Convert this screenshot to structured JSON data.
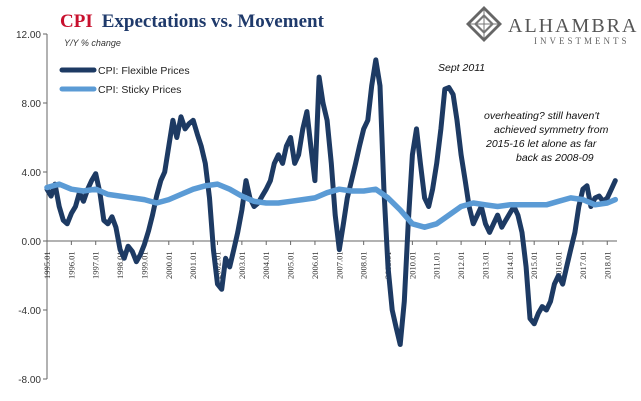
{
  "title": {
    "part1": "CPI",
    "part2": "Expectations vs. Movement"
  },
  "brand": {
    "name": "ALHAMBRA",
    "sub": "INVESTMENTS"
  },
  "chart_data": {
    "type": "line",
    "ylabel": "Y/Y % change",
    "ylim": [
      -8,
      12
    ],
    "yticks": [
      "12.00",
      "8.00",
      "4.00",
      "0.00",
      "-4.00",
      "-8.00"
    ],
    "ytick_values": [
      12,
      8,
      4,
      0,
      -4,
      -8
    ],
    "xlim": [
      1995.0,
      2018.4
    ],
    "xticks": [
      "1995.01",
      "1996.01",
      "1997.01",
      "1998.01",
      "1999.01",
      "2000.01",
      "2001.01",
      "2002.01",
      "2003.01",
      "2004.01",
      "2005.01",
      "2006.01",
      "2007.01",
      "2008.01",
      "2009.01",
      "2010.01",
      "2011.01",
      "2012.01",
      "2013.01",
      "2014.01",
      "2015.01",
      "2016.01",
      "2017.01",
      "2018.01"
    ],
    "xtick_values": [
      1995,
      1996,
      1997,
      1998,
      1999,
      2000,
      2001,
      2002,
      2003,
      2004,
      2005,
      2006,
      2007,
      2008,
      2009,
      2010,
      2011,
      2012,
      2013,
      2014,
      2015,
      2016,
      2017,
      2018
    ],
    "grid": false,
    "legend_position": "top-left",
    "series": [
      {
        "name": "CPI: Flexible Prices",
        "color": "#1d3a63",
        "points": [
          [
            1995.0,
            3.0
          ],
          [
            1995.17,
            2.6
          ],
          [
            1995.33,
            3.3
          ],
          [
            1995.5,
            2.0
          ],
          [
            1995.67,
            1.2
          ],
          [
            1995.83,
            1.0
          ],
          [
            1996.0,
            1.6
          ],
          [
            1996.17,
            2.0
          ],
          [
            1996.33,
            2.8
          ],
          [
            1996.5,
            2.3
          ],
          [
            1996.67,
            3.0
          ],
          [
            1996.83,
            3.5
          ],
          [
            1997.0,
            3.9
          ],
          [
            1997.17,
            2.8
          ],
          [
            1997.33,
            1.2
          ],
          [
            1997.5,
            1.0
          ],
          [
            1997.67,
            1.4
          ],
          [
            1997.83,
            0.8
          ],
          [
            1998.0,
            -0.5
          ],
          [
            1998.17,
            -1.0
          ],
          [
            1998.33,
            -0.3
          ],
          [
            1998.5,
            -0.6
          ],
          [
            1998.67,
            -1.2
          ],
          [
            1998.83,
            -0.8
          ],
          [
            1999.0,
            -0.2
          ],
          [
            1999.17,
            0.6
          ],
          [
            1999.33,
            1.5
          ],
          [
            1999.5,
            2.6
          ],
          [
            1999.67,
            3.5
          ],
          [
            1999.83,
            4.0
          ],
          [
            2000.0,
            5.5
          ],
          [
            2000.17,
            7.0
          ],
          [
            2000.33,
            6.0
          ],
          [
            2000.5,
            7.2
          ],
          [
            2000.67,
            6.5
          ],
          [
            2000.83,
            6.8
          ],
          [
            2001.0,
            7.0
          ],
          [
            2001.17,
            6.2
          ],
          [
            2001.33,
            5.5
          ],
          [
            2001.5,
            4.5
          ],
          [
            2001.67,
            2.5
          ],
          [
            2001.83,
            -0.5
          ],
          [
            2002.0,
            -2.5
          ],
          [
            2002.17,
            -2.8
          ],
          [
            2002.33,
            -1.0
          ],
          [
            2002.5,
            -1.5
          ],
          [
            2002.67,
            -0.5
          ],
          [
            2002.83,
            0.5
          ],
          [
            2003.0,
            1.8
          ],
          [
            2003.17,
            3.5
          ],
          [
            2003.33,
            2.5
          ],
          [
            2003.5,
            2.0
          ],
          [
            2003.67,
            2.2
          ],
          [
            2003.83,
            2.6
          ],
          [
            2004.0,
            3.0
          ],
          [
            2004.17,
            3.5
          ],
          [
            2004.33,
            4.5
          ],
          [
            2004.5,
            5.0
          ],
          [
            2004.67,
            4.5
          ],
          [
            2004.83,
            5.5
          ],
          [
            2005.0,
            6.0
          ],
          [
            2005.17,
            4.5
          ],
          [
            2005.33,
            5.0
          ],
          [
            2005.5,
            6.5
          ],
          [
            2005.67,
            7.5
          ],
          [
            2005.83,
            5.5
          ],
          [
            2006.0,
            3.5
          ],
          [
            2006.17,
            9.5
          ],
          [
            2006.33,
            8.0
          ],
          [
            2006.5,
            7.0
          ],
          [
            2006.67,
            4.5
          ],
          [
            2006.83,
            1.5
          ],
          [
            2007.0,
            -0.5
          ],
          [
            2007.17,
            1.0
          ],
          [
            2007.33,
            2.5
          ],
          [
            2007.5,
            3.5
          ],
          [
            2007.67,
            4.5
          ],
          [
            2007.83,
            5.5
          ],
          [
            2008.0,
            6.5
          ],
          [
            2008.17,
            7.0
          ],
          [
            2008.33,
            9.0
          ],
          [
            2008.5,
            10.5
          ],
          [
            2008.67,
            9.0
          ],
          [
            2008.83,
            3.0
          ],
          [
            2009.0,
            -1.5
          ],
          [
            2009.17,
            -4.0
          ],
          [
            2009.33,
            -5.0
          ],
          [
            2009.5,
            -6.0
          ],
          [
            2009.67,
            -3.5
          ],
          [
            2009.83,
            1.0
          ],
          [
            2010.0,
            5.0
          ],
          [
            2010.17,
            6.5
          ],
          [
            2010.33,
            4.5
          ],
          [
            2010.5,
            2.5
          ],
          [
            2010.67,
            2.0
          ],
          [
            2010.83,
            3.0
          ],
          [
            2011.0,
            4.5
          ],
          [
            2011.17,
            6.5
          ],
          [
            2011.33,
            8.8
          ],
          [
            2011.5,
            8.9
          ],
          [
            2011.67,
            8.5
          ],
          [
            2011.83,
            7.0
          ],
          [
            2012.0,
            5.0
          ],
          [
            2012.17,
            3.5
          ],
          [
            2012.33,
            2.0
          ],
          [
            2012.5,
            1.0
          ],
          [
            2012.67,
            1.5
          ],
          [
            2012.83,
            2.0
          ],
          [
            2013.0,
            1.0
          ],
          [
            2013.17,
            0.5
          ],
          [
            2013.33,
            1.0
          ],
          [
            2013.5,
            1.5
          ],
          [
            2013.67,
            0.8
          ],
          [
            2013.83,
            1.2
          ],
          [
            2014.0,
            1.6
          ],
          [
            2014.17,
            2.0
          ],
          [
            2014.33,
            1.5
          ],
          [
            2014.5,
            0.5
          ],
          [
            2014.67,
            -1.5
          ],
          [
            2014.83,
            -4.5
          ],
          [
            2015.0,
            -4.8
          ],
          [
            2015.17,
            -4.2
          ],
          [
            2015.33,
            -3.8
          ],
          [
            2015.5,
            -4.0
          ],
          [
            2015.67,
            -3.5
          ],
          [
            2015.83,
            -2.5
          ],
          [
            2016.0,
            -2.0
          ],
          [
            2016.17,
            -2.5
          ],
          [
            2016.33,
            -1.5
          ],
          [
            2016.5,
            -0.5
          ],
          [
            2016.67,
            0.5
          ],
          [
            2016.83,
            2.0
          ],
          [
            2017.0,
            3.0
          ],
          [
            2017.17,
            3.2
          ],
          [
            2017.33,
            2.0
          ],
          [
            2017.5,
            2.5
          ],
          [
            2017.67,
            2.6
          ],
          [
            2017.83,
            2.3
          ],
          [
            2018.0,
            2.5
          ],
          [
            2018.17,
            3.0
          ],
          [
            2018.33,
            3.5
          ]
        ]
      },
      {
        "name": "CPI: Sticky Prices",
        "color": "#5b9bd5",
        "points": [
          [
            1995.0,
            3.1
          ],
          [
            1995.5,
            3.3
          ],
          [
            1996.0,
            3.0
          ],
          [
            1996.5,
            2.9
          ],
          [
            1997.0,
            3.0
          ],
          [
            1997.5,
            2.7
          ],
          [
            1998.0,
            2.6
          ],
          [
            1998.5,
            2.5
          ],
          [
            1999.0,
            2.4
          ],
          [
            1999.5,
            2.2
          ],
          [
            2000.0,
            2.4
          ],
          [
            2000.5,
            2.7
          ],
          [
            2001.0,
            3.0
          ],
          [
            2001.5,
            3.2
          ],
          [
            2002.0,
            3.3
          ],
          [
            2002.5,
            3.0
          ],
          [
            2003.0,
            2.6
          ],
          [
            2003.5,
            2.3
          ],
          [
            2004.0,
            2.2
          ],
          [
            2004.5,
            2.2
          ],
          [
            2005.0,
            2.3
          ],
          [
            2005.5,
            2.4
          ],
          [
            2006.0,
            2.5
          ],
          [
            2006.5,
            2.8
          ],
          [
            2007.0,
            3.0
          ],
          [
            2007.5,
            2.9
          ],
          [
            2008.0,
            2.9
          ],
          [
            2008.5,
            3.0
          ],
          [
            2009.0,
            2.5
          ],
          [
            2009.5,
            1.8
          ],
          [
            2010.0,
            1.0
          ],
          [
            2010.5,
            0.8
          ],
          [
            2011.0,
            1.0
          ],
          [
            2011.5,
            1.5
          ],
          [
            2012.0,
            2.0
          ],
          [
            2012.5,
            2.2
          ],
          [
            2013.0,
            2.1
          ],
          [
            2013.5,
            2.0
          ],
          [
            2014.0,
            2.1
          ],
          [
            2014.5,
            2.1
          ],
          [
            2015.0,
            2.1
          ],
          [
            2015.5,
            2.1
          ],
          [
            2016.0,
            2.3
          ],
          [
            2016.5,
            2.5
          ],
          [
            2017.0,
            2.4
          ],
          [
            2017.5,
            2.1
          ],
          [
            2018.0,
            2.2
          ],
          [
            2018.33,
            2.4
          ]
        ]
      }
    ],
    "annotations": [
      {
        "text": "Sept 2011"
      },
      {
        "lines": [
          "overheating? still haven't",
          "achieved symmetry from",
          "2015-16 let alone as far",
          "back as 2008-09"
        ]
      }
    ]
  }
}
